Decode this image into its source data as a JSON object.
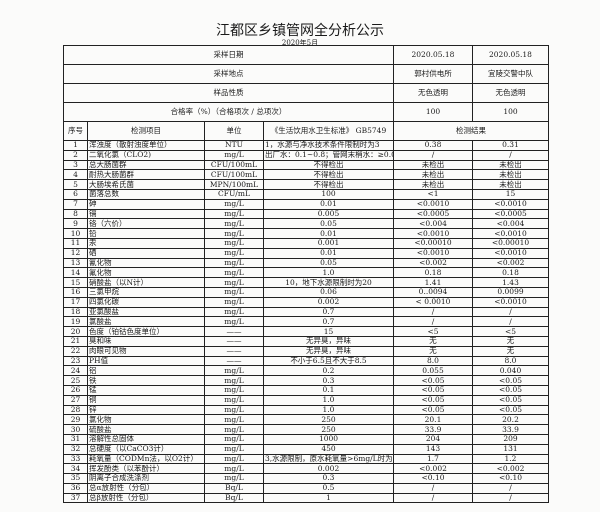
{
  "title": "江都区乡镇管网全分析公示",
  "subtitle": "2020年5月",
  "meta": [
    {
      "label": "采样日期",
      "values": [
        "2020.05.18",
        "2020.05.18"
      ]
    },
    {
      "label": "采样地点",
      "values": [
        "郭村供电所",
        "宜陵交警中队"
      ]
    },
    {
      "label": "样品性质",
      "values": [
        "无色透明",
        "无色透明"
      ]
    },
    {
      "label": "合格率（%）（合格项次 / 总项次）",
      "values": [
        "100",
        "100"
      ]
    }
  ],
  "header": {
    "no": "序号",
    "item": "检测项目",
    "unit": "单位",
    "standard": "《生活饮用水卫生标准》 GB5749",
    "result": "检测结果"
  },
  "rows": [
    [
      "1",
      "浑浊度（散射浊度单位）",
      "NTU",
      "1，水源与净水技术条件限制时为3",
      "0.38",
      "0.31"
    ],
    [
      "2",
      "二氧化氯（CLO2)",
      "mg/L",
      "出厂水：0.1~0.8；管网末梢水：≥0.02",
      "/",
      "/"
    ],
    [
      "3",
      "总大肠菌群",
      "CFU/100mL",
      "不得检出",
      "未检出",
      "未检出"
    ],
    [
      "4",
      "耐热大肠菌群",
      "CFU/100mL",
      "不得检出",
      "未检出",
      "未检出"
    ],
    [
      "5",
      "大肠埃希氏菌",
      "MPN/100mL",
      "不得检出",
      "未检出",
      "未检出"
    ],
    [
      "6",
      "菌落总数",
      "CFU/mL",
      "100",
      "<1",
      "15"
    ],
    [
      "7",
      "砷",
      "mg/L",
      "0.01",
      "<0.0010",
      "<0.0010"
    ],
    [
      "8",
      "镉",
      "mg/L",
      "0.005",
      "<0.0005",
      "<0.0005"
    ],
    [
      "9",
      "铬（六价）",
      "mg/L",
      "0.05",
      "<0.004",
      "<0.004"
    ],
    [
      "10",
      "铅",
      "mg/L",
      "0.01",
      "<0.0010",
      "<0.0010"
    ],
    [
      "11",
      "汞",
      "mg/L",
      "0.001",
      "<0.00010",
      "<0.00010"
    ],
    [
      "12",
      "硒",
      "mg/L",
      "0.01",
      "<0.0010",
      "<0.0010"
    ],
    [
      "13",
      "氰化物",
      "mg/L",
      "0.05",
      "<0.002",
      "<0.002"
    ],
    [
      "14",
      "氟化物",
      "mg/L",
      "1.0",
      "0.18",
      "0.18"
    ],
    [
      "15",
      "硝酸盐（以N计）",
      "mg/L",
      "10，地下水源限制时为20",
      "1.41",
      "1.43"
    ],
    [
      "16",
      "三氯甲烷",
      "mg/L",
      "0.06",
      "0..0094",
      "0.0099"
    ],
    [
      "17",
      "四氯化碳",
      "mg/L",
      "0.002",
      "< 0.0010",
      "<0.0010"
    ],
    [
      "18",
      "亚氯酸盐",
      "mg/L",
      "0.7",
      "/",
      "/"
    ],
    [
      "19",
      "氯酸盐",
      "mg/L",
      "0.7",
      "/",
      "/"
    ],
    [
      "20",
      "色度（铂钴色度单位）",
      "——",
      "15",
      "<5",
      "<5"
    ],
    [
      "21",
      "臭和味",
      "——",
      "无异臭，异味",
      "无",
      "无"
    ],
    [
      "22",
      "肉眼可见物",
      "——",
      "无异臭，异味",
      "无",
      "无"
    ],
    [
      "23",
      "PH值",
      "——",
      "不小于6.5且不大于8.5",
      "8.0",
      "8.0"
    ],
    [
      "24",
      "铝",
      "mg/L",
      "0.2",
      "0.055",
      "0.040"
    ],
    [
      "25",
      "铁",
      "mg/L",
      "0.3",
      "<0.05",
      "<0.05"
    ],
    [
      "26",
      "锰",
      "mg/L",
      "0.1",
      "<0.05",
      "<0.05"
    ],
    [
      "27",
      "铜",
      "mg/L",
      "1.0",
      "<0.05",
      "<0.05"
    ],
    [
      "28",
      "锌",
      "mg/L",
      "1.0",
      "<0.05",
      "<0.05"
    ],
    [
      "29",
      "氯化物",
      "mg/L",
      "250",
      "20.1",
      "20.2"
    ],
    [
      "30",
      "硫酸盐",
      "mg/L",
      "250",
      "33.9",
      "33.9"
    ],
    [
      "31",
      "溶解性总固体",
      "mg/L",
      "1000",
      "204",
      "209"
    ],
    [
      "32",
      "总硬度（以CaCO3计）",
      "mg/L",
      "450",
      "143",
      "131"
    ],
    [
      "33",
      "耗氧量（CODMn法，以O2计）",
      "mg/L",
      "3,水源限制，原水耗氧量>6mg/L时为5",
      "1.7",
      "1.2"
    ],
    [
      "34",
      "挥发酚类（以苯酚计）",
      "mg/L",
      "0.002",
      "<0.002",
      "<0.002"
    ],
    [
      "35",
      "阴离子合成洗涤剂",
      "mg/L",
      "0.3",
      "<0.10",
      "<0.10"
    ],
    [
      "36",
      "总α放射性（分包）",
      "Bq/L",
      "0.5",
      "/",
      "/"
    ],
    [
      "37",
      "总β放射性（分包）",
      "Bq/L",
      "1",
      "/",
      "/"
    ]
  ]
}
